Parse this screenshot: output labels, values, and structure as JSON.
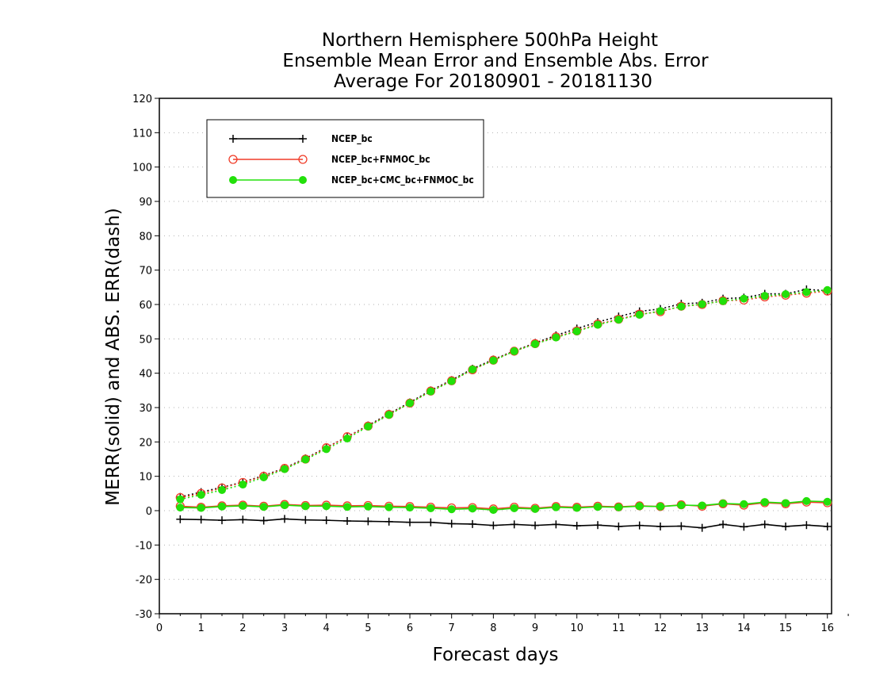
{
  "chart_data": {
    "type": "line",
    "title_lines": [
      "Northern Hemisphere 500hPa Height",
      "Ensemble Mean Error and Ensemble Abs. Error",
      "Average For 20180901 - 20181130"
    ],
    "xlabel": "Forecast days",
    "ylabel": "MERR(solid) and ABS. ERR(dash)",
    "xlim": [
      0,
      16.1
    ],
    "ylim": [
      -30,
      120
    ],
    "x_ticks": [
      "0",
      "1",
      "2",
      "3",
      "4",
      "5",
      "6",
      "7",
      "8",
      "9",
      "10",
      "11",
      "12",
      "13",
      "14",
      "15",
      "16"
    ],
    "y_ticks": [
      "-30",
      "-20",
      "-10",
      "0",
      "10",
      "20",
      "30",
      "40",
      "50",
      "60",
      "70",
      "80",
      "90",
      "100",
      "110",
      "120"
    ],
    "grid": "horizontal dotted",
    "legend_position": "top-left",
    "x": [
      0.5,
      1,
      1.5,
      2,
      2.5,
      3,
      3.5,
      4,
      4.5,
      5,
      5.5,
      6,
      6.5,
      7,
      7.5,
      8,
      8.5,
      9,
      9.5,
      10,
      10.5,
      11,
      11.5,
      12,
      12.5,
      13,
      13.5,
      14,
      14.5,
      15,
      15.5,
      16
    ],
    "series": [
      {
        "name": "NCEP_bc",
        "color": "#000000",
        "marker": "plus",
        "abs_err": [
          4.0,
          5.4,
          6.8,
          8.3,
          10.2,
          12.4,
          15.2,
          18.4,
          21.5,
          24.8,
          28.2,
          31.5,
          35.0,
          38.0,
          41.3,
          44.0,
          46.5,
          48.8,
          51.0,
          53.0,
          54.9,
          56.5,
          58.0,
          58.7,
          60.2,
          60.5,
          61.7,
          62.0,
          63.1,
          63.1,
          64.4,
          64.0
        ],
        "mean_err": [
          -2.5,
          -2.6,
          -2.8,
          -2.6,
          -2.9,
          -2.4,
          -2.7,
          -2.8,
          -3.0,
          -3.1,
          -3.2,
          -3.4,
          -3.4,
          -3.8,
          -3.9,
          -4.3,
          -4.0,
          -4.3,
          -4.0,
          -4.4,
          -4.2,
          -4.6,
          -4.3,
          -4.6,
          -4.5,
          -5.0,
          -4.0,
          -4.7,
          -4.0,
          -4.6,
          -4.2,
          -4.6
        ]
      },
      {
        "name": "NCEP_bc+FNMOC_bc",
        "color": "#f03c28",
        "marker": "open-circle",
        "abs_err": [
          3.8,
          5.0,
          6.6,
          8.2,
          10.0,
          12.3,
          15.0,
          18.3,
          21.5,
          24.6,
          28.0,
          31.3,
          34.8,
          37.8,
          41.0,
          43.8,
          46.4,
          48.6,
          50.6,
          52.3,
          54.3,
          55.7,
          57.2,
          57.9,
          59.5,
          60.0,
          61.1,
          61.3,
          62.2,
          62.7,
          63.3,
          63.9
        ],
        "mean_err": [
          1.3,
          1.0,
          1.4,
          1.6,
          1.3,
          1.8,
          1.5,
          1.6,
          1.4,
          1.5,
          1.3,
          1.2,
          1.0,
          0.8,
          0.9,
          0.5,
          1.0,
          0.7,
          1.2,
          1.0,
          1.3,
          1.1,
          1.4,
          1.2,
          1.7,
          1.3,
          2.0,
          1.6,
          2.3,
          2.0,
          2.5,
          2.3
        ]
      },
      {
        "name": "NCEP_bc+CMC_bc+FNMOC_bc",
        "color": "#22e00a",
        "marker": "filled-circle",
        "abs_err": [
          3.3,
          4.6,
          6.0,
          7.6,
          9.7,
          12.1,
          14.9,
          17.9,
          21.0,
          24.5,
          27.9,
          31.3,
          34.7,
          37.7,
          41.1,
          43.7,
          46.4,
          48.5,
          50.4,
          52.2,
          54.1,
          55.6,
          57.0,
          58.1,
          59.4,
          60.1,
          61.0,
          61.7,
          62.5,
          63.0,
          63.6,
          64.2
        ],
        "mean_err": [
          0.9,
          0.8,
          1.2,
          1.4,
          1.1,
          1.6,
          1.3,
          1.3,
          1.1,
          1.2,
          1.0,
          0.9,
          0.7,
          0.4,
          0.6,
          0.2,
          0.7,
          0.5,
          1.0,
          0.8,
          1.1,
          1.0,
          1.3,
          1.2,
          1.6,
          1.5,
          2.1,
          1.9,
          2.5,
          2.2,
          2.8,
          2.6
        ]
      }
    ]
  }
}
